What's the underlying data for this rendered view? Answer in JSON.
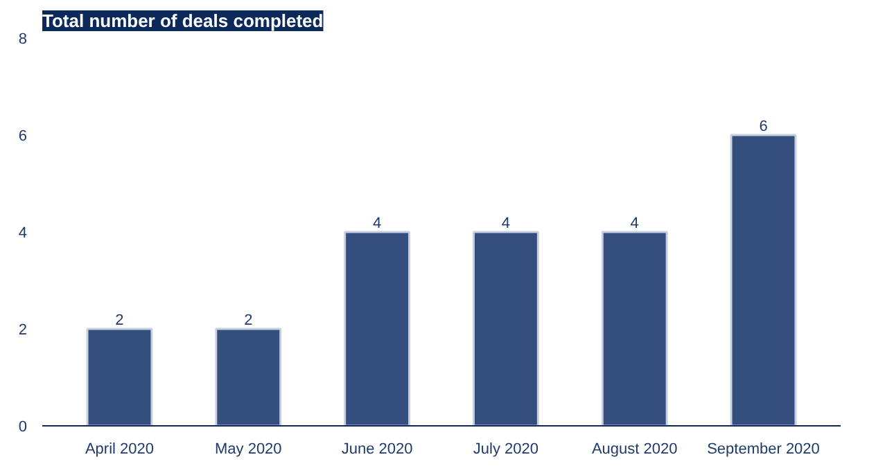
{
  "chart_data": {
    "type": "bar",
    "title": "Total number of deals completed",
    "categories": [
      "April 2020",
      "May 2020",
      "June 2020",
      "July 2020",
      "August 2020",
      "September 2020"
    ],
    "values": [
      2,
      2,
      4,
      4,
      4,
      6
    ],
    "color": "#344e7e",
    "ylim": [
      0,
      8
    ],
    "yticks": [
      0,
      2,
      4,
      6,
      8
    ],
    "grid": false,
    "data_labels": true
  }
}
